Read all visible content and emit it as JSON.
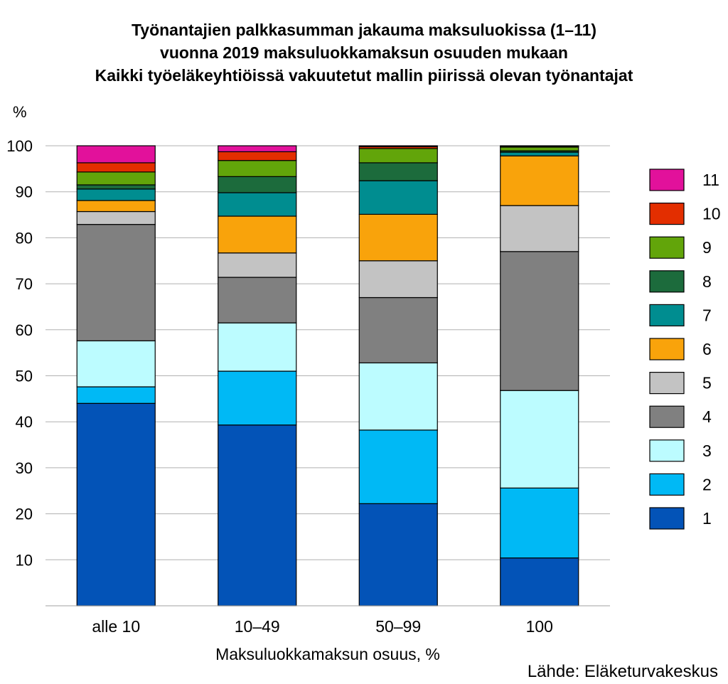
{
  "chart_data": {
    "type": "bar",
    "stacked": true,
    "title_lines": [
      "Työnantajien palkkasumman jakauma maksuluokissa (1–11)",
      "vuonna 2019 maksuluokkamaksun osuuden mukaan",
      "Kaikki työeläkeyhtiöissä vakuutetut mallin piirissä olevan työnantajat"
    ],
    "ylabel": "%",
    "xlabel": "Maksuluokkamaksun osuus, %",
    "source": "Lähde: Eläketurvakeskus",
    "ylim": [
      0,
      100
    ],
    "yticks": [
      10,
      20,
      30,
      40,
      50,
      60,
      70,
      80,
      90,
      100
    ],
    "grid": true,
    "legend_position": "right",
    "categories": [
      "alle 10",
      "10–49",
      "50–99",
      "100"
    ],
    "series": [
      {
        "name": "1",
        "color": "#0353b7",
        "values": [
          44.0,
          39.3,
          22.2,
          10.4
        ]
      },
      {
        "name": "2",
        "color": "#00b9f5",
        "values": [
          3.6,
          11.7,
          16.0,
          15.2
        ]
      },
      {
        "name": "3",
        "color": "#bcfcff",
        "values": [
          10.0,
          10.5,
          14.6,
          21.2
        ]
      },
      {
        "name": "4",
        "color": "#808080",
        "values": [
          25.3,
          9.9,
          14.2,
          30.2
        ]
      },
      {
        "name": "5",
        "color": "#c3c3c3",
        "values": [
          2.8,
          5.3,
          8.0,
          10.0
        ]
      },
      {
        "name": "6",
        "color": "#f9a30b",
        "values": [
          2.4,
          8.0,
          10.1,
          10.8
        ]
      },
      {
        "name": "7",
        "color": "#008d90",
        "values": [
          2.5,
          5.1,
          7.3,
          0.8
        ]
      },
      {
        "name": "8",
        "color": "#1c6b3c",
        "values": [
          0.9,
          3.5,
          3.9,
          0.3
        ]
      },
      {
        "name": "9",
        "color": "#62a50a",
        "values": [
          2.8,
          3.5,
          3.1,
          0.8
        ]
      },
      {
        "name": "10",
        "color": "#e32e00",
        "values": [
          2.0,
          1.9,
          0.4,
          0.2
        ]
      },
      {
        "name": "11",
        "color": "#e2119b",
        "values": [
          3.7,
          1.3,
          0.2,
          0.1
        ]
      }
    ]
  }
}
